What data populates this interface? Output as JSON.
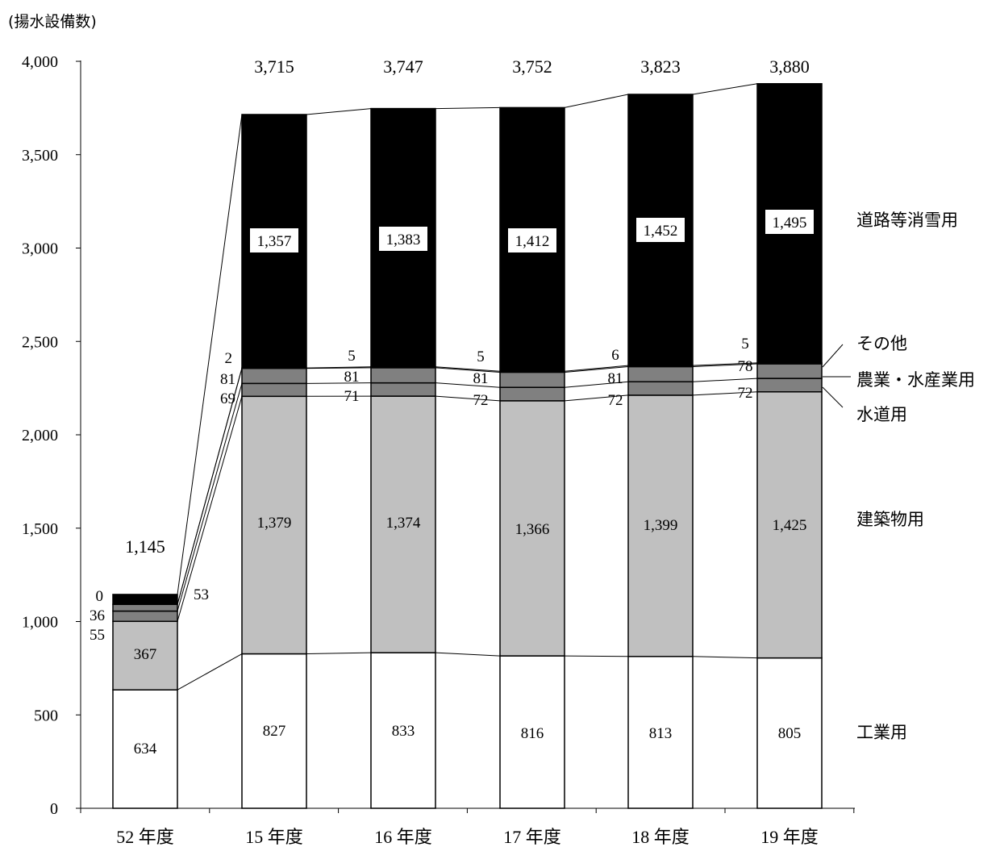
{
  "chart_data": {
    "type": "bar",
    "stacked": true,
    "unit_label": "(揚水設備数)",
    "categories": [
      "52 年度",
      "15 年度",
      "16 年度",
      "17 年度",
      "18 年度",
      "19 年度"
    ],
    "totals": [
      "1,145",
      "3,715",
      "3,747",
      "3,752",
      "3,823",
      "3,880"
    ],
    "series": [
      {
        "name": "工業用",
        "values": [
          634,
          827,
          833,
          816,
          813,
          805
        ],
        "labels": [
          "634",
          "827",
          "833",
          "816",
          "813",
          "805"
        ],
        "color": "#ffffff"
      },
      {
        "name": "建築物用",
        "values": [
          367,
          1379,
          1374,
          1366,
          1399,
          1425
        ],
        "labels": [
          "367",
          "1,379",
          "1,374",
          "1,366",
          "1,399",
          "1,425"
        ],
        "color": "#c0c0c0"
      },
      {
        "name": "水道用",
        "values": [
          55,
          69,
          71,
          72,
          72,
          72
        ],
        "labels": [
          "55",
          "69",
          "71",
          "72",
          "72",
          "72"
        ],
        "color": "#808080"
      },
      {
        "name": "農業・水産業用",
        "values": [
          36,
          81,
          81,
          81,
          81,
          78
        ],
        "labels": [
          "36",
          "81",
          "81",
          "81",
          "81",
          "78"
        ],
        "color": "#808080"
      },
      {
        "name": "その他",
        "values": [
          0,
          2,
          5,
          5,
          6,
          5
        ],
        "labels": [
          "0",
          "2",
          "5",
          "5",
          "6",
          "5"
        ],
        "color": "#808080"
      },
      {
        "name": "道路等消雪用",
        "values": [
          53,
          1357,
          1383,
          1412,
          1452,
          1495
        ],
        "labels": [
          "53",
          "1,357",
          "1,383",
          "1,412",
          "1,452",
          "1,495"
        ],
        "color": "#000000"
      }
    ],
    "yticks": [
      "0",
      "500",
      "1,000",
      "1,500",
      "2,000",
      "2,500",
      "3,000",
      "3,500",
      "4,000"
    ],
    "ylim": [
      0,
      4000
    ]
  }
}
